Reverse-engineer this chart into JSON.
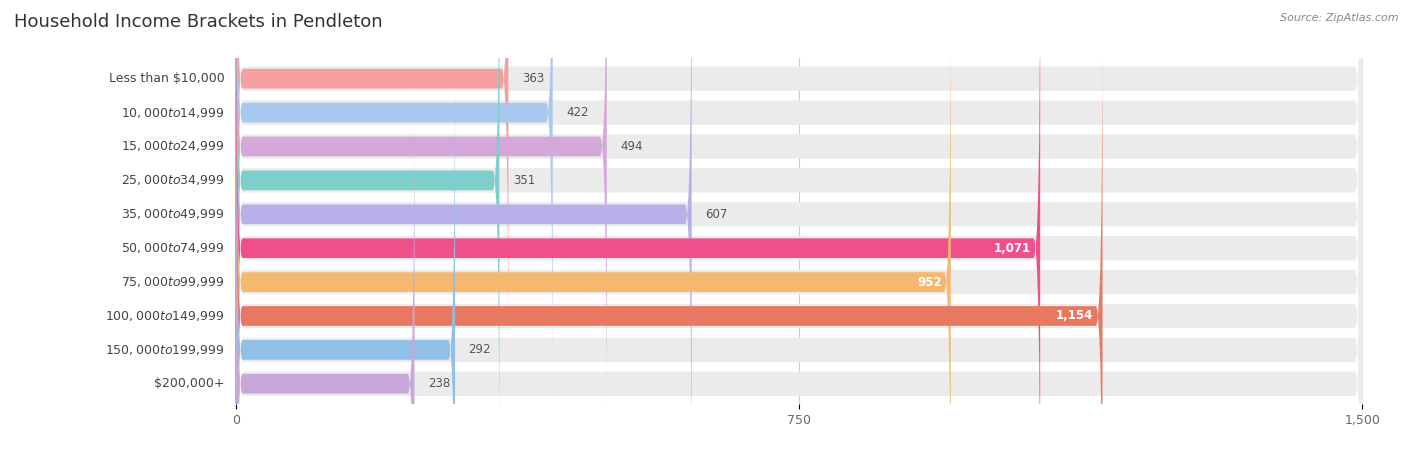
{
  "title": "Household Income Brackets in Pendleton",
  "source": "Source: ZipAtlas.com",
  "categories": [
    "Less than $10,000",
    "$10,000 to $14,999",
    "$15,000 to $24,999",
    "$25,000 to $34,999",
    "$35,000 to $49,999",
    "$50,000 to $74,999",
    "$75,000 to $99,999",
    "$100,000 to $149,999",
    "$150,000 to $199,999",
    "$200,000+"
  ],
  "values": [
    363,
    422,
    494,
    351,
    607,
    1071,
    952,
    1154,
    292,
    238
  ],
  "bar_colors": [
    "#F4A0A0",
    "#A8C8F0",
    "#D4A8D8",
    "#7DCFCC",
    "#B8B0E8",
    "#F0508A",
    "#F4B870",
    "#E87860",
    "#90C0E8",
    "#C8A8D8"
  ],
  "xlim_max": 1500,
  "xticks": [
    0,
    750,
    1500
  ],
  "bg_color": "#ffffff",
  "row_bg_color": "#ebebeb",
  "title_fontsize": 13,
  "label_fontsize": 9,
  "value_fontsize": 8.5,
  "source_fontsize": 8
}
